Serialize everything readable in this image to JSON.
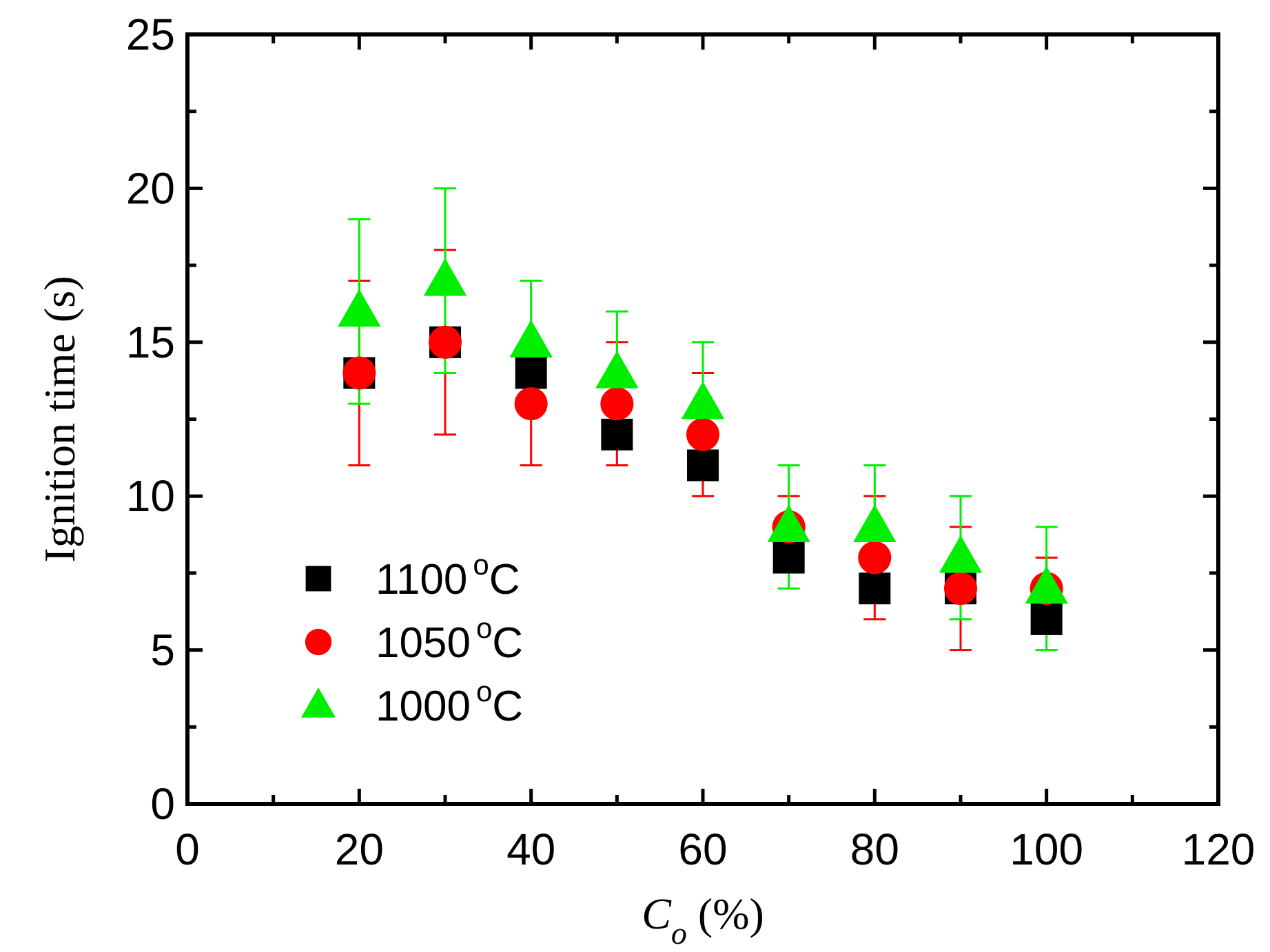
{
  "chart_data": {
    "type": "scatter",
    "title": "",
    "xlabel": {
      "main": "C",
      "subscript": "o",
      "unit": " (%)"
    },
    "ylabel": "Ignition time (s)",
    "xlim": [
      0,
      120
    ],
    "ylim": [
      0,
      25
    ],
    "x_ticks": [
      0,
      20,
      40,
      60,
      80,
      100,
      120
    ],
    "y_ticks": [
      0,
      5,
      10,
      15,
      20,
      25
    ],
    "grid": false,
    "legend_position": "lower-left",
    "series": [
      {
        "name": "1100 °C",
        "label_value": "1100",
        "label_unit": "C",
        "marker": "square",
        "color": "#000000",
        "x": [
          20,
          30,
          40,
          50,
          60,
          70,
          80,
          90,
          100
        ],
        "y": [
          14,
          15,
          14,
          12,
          11,
          8,
          7,
          7,
          6
        ],
        "yerr_low": null,
        "yerr_high": null
      },
      {
        "name": "1050 °C",
        "label_value": "1050",
        "label_unit": "C",
        "marker": "circle",
        "color": "#ff0000",
        "x": [
          20,
          30,
          40,
          50,
          60,
          70,
          80,
          90,
          100
        ],
        "y": [
          14,
          15,
          13,
          13,
          12,
          9,
          8,
          7,
          7
        ],
        "yerr_low": [
          11,
          12,
          11,
          11,
          10,
          8,
          6,
          5,
          6
        ],
        "yerr_high": [
          17,
          18,
          15,
          15,
          14,
          10,
          10,
          9,
          8
        ]
      },
      {
        "name": "1000 °C",
        "label_value": "1000",
        "label_unit": "C",
        "marker": "triangle",
        "color": "#00ee00",
        "x": [
          20,
          30,
          40,
          50,
          60,
          70,
          80,
          90,
          100
        ],
        "y": [
          16,
          17,
          15,
          14,
          13,
          9,
          9,
          8,
          7
        ],
        "yerr_low": [
          13,
          14,
          13,
          12,
          11,
          7,
          7,
          6,
          5
        ],
        "yerr_high": [
          19,
          20,
          17,
          16,
          15,
          11,
          11,
          10,
          9
        ]
      }
    ]
  }
}
